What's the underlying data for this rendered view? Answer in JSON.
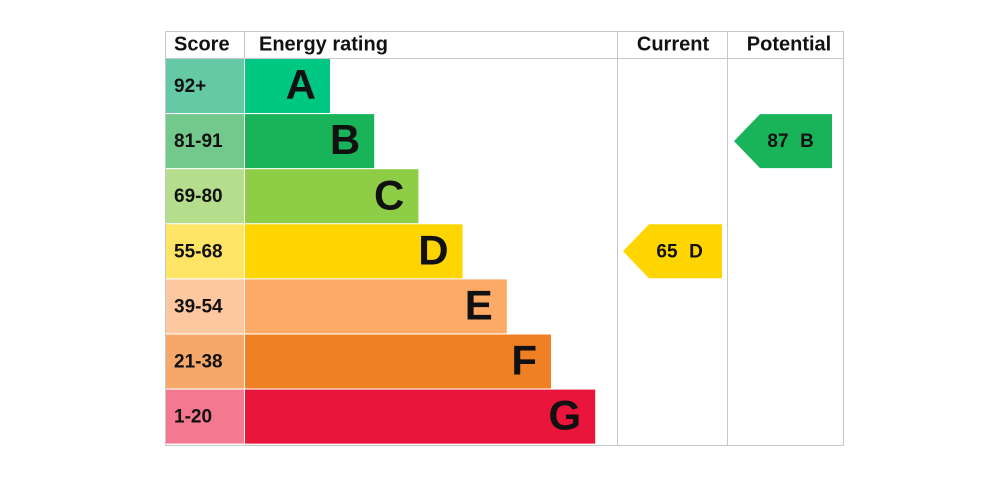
{
  "header": {
    "score": "Score",
    "rating": "Energy rating",
    "current": "Current",
    "potential": "Potential"
  },
  "bands": [
    {
      "score": "92+",
      "letter": "A",
      "color": "#00c781",
      "score_color": "#64c9a4"
    },
    {
      "score": "81-91",
      "letter": "B",
      "color": "#19b459",
      "score_color": "#72c98b"
    },
    {
      "score": "69-80",
      "letter": "C",
      "color": "#8dce46",
      "score_color": "#b4de8c"
    },
    {
      "score": "55-68",
      "letter": "D",
      "color": "#ffd500",
      "score_color": "#ffe566"
    },
    {
      "score": "39-54",
      "letter": "E",
      "color": "#fcaa65",
      "score_color": "#fdc79f"
    },
    {
      "score": "21-38",
      "letter": "F",
      "color": "#ef8023",
      "score_color": "#f5a86a"
    },
    {
      "score": "1-20",
      "letter": "G",
      "color": "#e9153b",
      "score_color": "#f27990"
    }
  ],
  "current": {
    "value": 65,
    "letter": "D"
  },
  "potential": {
    "value": 87,
    "letter": "B"
  }
}
